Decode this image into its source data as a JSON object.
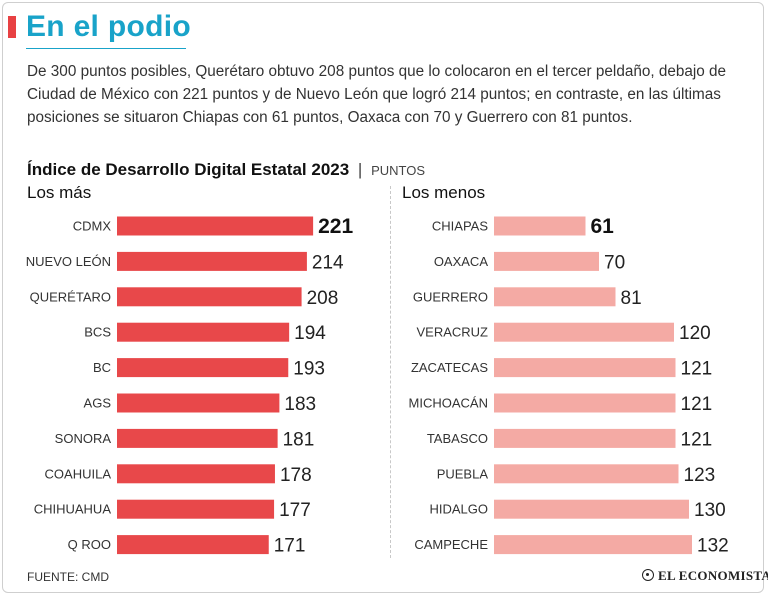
{
  "headline": "En el podio",
  "intro": "De 300 puntos posibles, Querétaro obtuvo 208 puntos que lo colocaron en el tercer peldaño, debajo de Ciudad de México con 221 puntos y de Nuevo León que logró 214 puntos; en contraste, en las últimas posiciones se situaron Chiapas con 61 puntos, Oaxaca con 70 y Guerrero con 81 puntos.",
  "chart_title": "Índice de Desarrollo Digital Estatal 2023",
  "chart_separator": "|",
  "chart_unit": "PUNTOS",
  "source": "FUENTE: CMD",
  "logo_text": "EL ECONOMISTA",
  "colors": {
    "accent_red": "#e84143",
    "title_blue": "#19a3c9",
    "top_bar": "#e8484a",
    "bottom_bar": "#f4aaa4"
  },
  "chart_data": [
    {
      "type": "bar",
      "orientation": "horizontal",
      "title": "Los más",
      "categories": [
        "CDMX",
        "NUEVO LEÓN",
        "QUERÉTARO",
        "BCS",
        "BC",
        "AGS",
        "SONORA",
        "COAHUILA",
        "CHIHUAHUA",
        "Q ROO"
      ],
      "values": [
        221,
        214,
        208,
        194,
        193,
        183,
        181,
        178,
        177,
        171
      ],
      "color": "#e8484a",
      "xlim": [
        0,
        300
      ],
      "grid": false
    },
    {
      "type": "bar",
      "orientation": "horizontal",
      "title": "Los menos",
      "categories": [
        "CHIAPAS",
        "OAXACA",
        "GUERRERO",
        "VERACRUZ",
        "ZACATECAS",
        "MICHOACÁN",
        "TABASCO",
        "PUEBLA",
        "HIDALGO",
        "CAMPECHE"
      ],
      "values": [
        61,
        70,
        81,
        120,
        121,
        121,
        121,
        123,
        130,
        132
      ],
      "color": "#f4aaa4",
      "xlim": [
        0,
        300
      ],
      "grid": false
    }
  ]
}
